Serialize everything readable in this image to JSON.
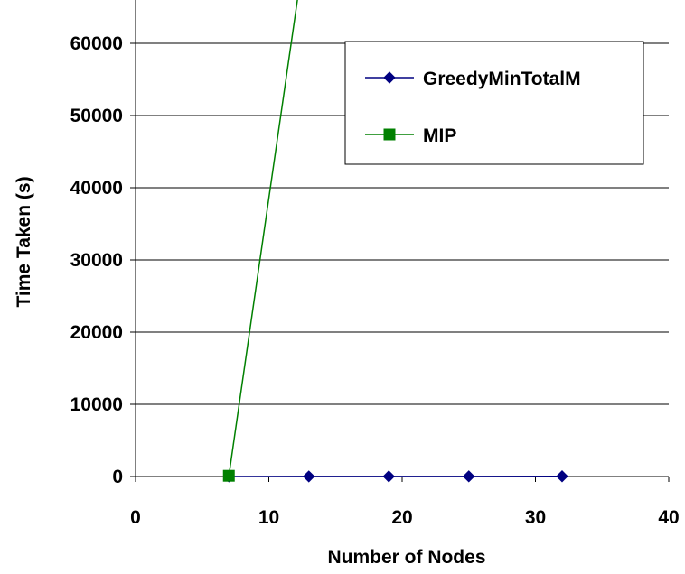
{
  "chart_data": {
    "type": "line",
    "xlabel": "Number of Nodes",
    "ylabel": "Time Taken (s)",
    "xlim": [
      0,
      40
    ],
    "ylim": [
      0,
      65000
    ],
    "x_ticks": [
      "0",
      "10",
      "20",
      "30",
      "40"
    ],
    "y_ticks": [
      "0",
      "10000",
      "20000",
      "30000",
      "40000",
      "50000",
      "60000"
    ],
    "grid": "horizontal",
    "legend_position": "top-right",
    "series": [
      {
        "name": "GreedyMinTotalM",
        "color": "#000080",
        "marker": "diamond",
        "x": [
          7,
          13,
          19,
          25,
          32
        ],
        "y": [
          5,
          10,
          15,
          20,
          30
        ]
      },
      {
        "name": "MIP",
        "color": "#008000",
        "marker": "square",
        "x": [
          7,
          13
        ],
        "y": [
          100,
          77000
        ]
      }
    ]
  }
}
